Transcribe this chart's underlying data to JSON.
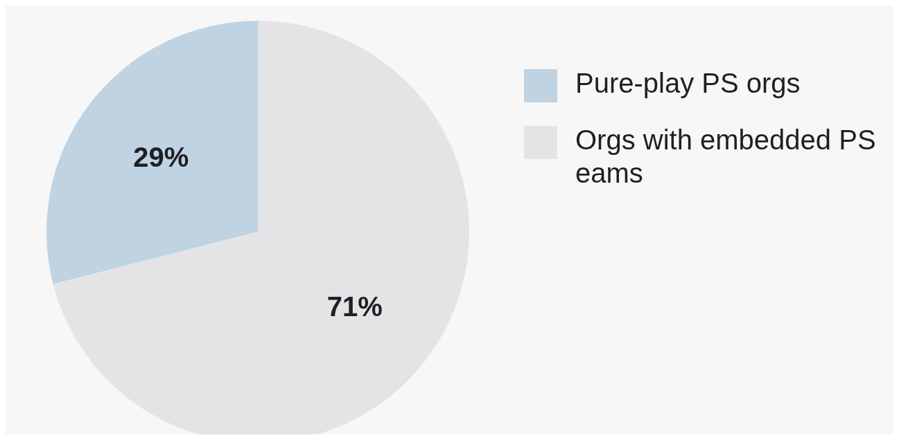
{
  "chart_data": {
    "type": "pie",
    "categories": [
      "Pure-play PS orgs",
      "Orgs with embedded PS eams"
    ],
    "values": [
      29,
      71
    ],
    "colors": [
      "#bfd3e2",
      "#e4e4e6"
    ],
    "value_labels": [
      "29%",
      "71%"
    ],
    "legend": "top right"
  }
}
